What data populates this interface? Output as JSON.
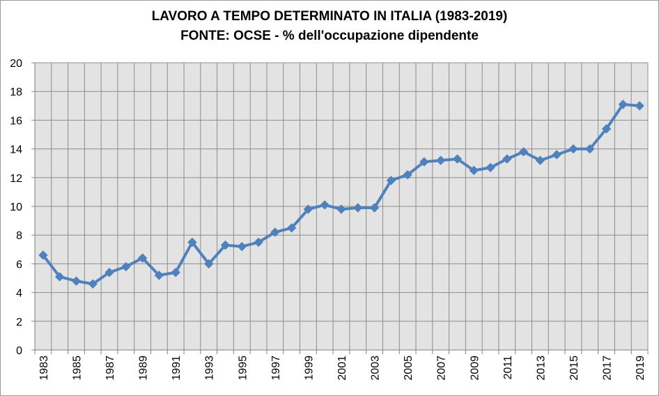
{
  "chart_data": {
    "type": "line",
    "title": "LAVORO A TEMPO DETERMINATO IN ITALIA (1983-2019)",
    "subtitle": "FONTE: OCSE - % dell'occupazione dipendente",
    "xlabel": "",
    "ylabel": "",
    "ylim": [
      0,
      20
    ],
    "y_ticks": [
      "0",
      "2",
      "4",
      "6",
      "8",
      "10",
      "12",
      "14",
      "16",
      "18",
      "20"
    ],
    "grid": true,
    "legend": "none",
    "colors": {
      "line": "#4f81bd",
      "plot_bg": "#e3e3e3",
      "grid": "#8c8c8c"
    },
    "x": [
      1983,
      1984,
      1985,
      1986,
      1987,
      1988,
      1989,
      1990,
      1991,
      1992,
      1993,
      1994,
      1995,
      1996,
      1997,
      1998,
      1999,
      2000,
      2001,
      2002,
      2003,
      2004,
      2005,
      2006,
      2007,
      2008,
      2009,
      2010,
      2011,
      2012,
      2013,
      2014,
      2015,
      2016,
      2017,
      2018,
      2019
    ],
    "x_tick_labels": [
      "1983",
      "1985",
      "1987",
      "1989",
      "1991",
      "1993",
      "1995",
      "1997",
      "1999",
      "2001",
      "2003",
      "2005",
      "2007",
      "2009",
      "2011",
      "2013",
      "2015",
      "2017",
      "2019"
    ],
    "series": [
      {
        "values": [
          6.6,
          5.1,
          4.8,
          4.6,
          5.4,
          5.8,
          6.4,
          5.2,
          5.4,
          7.5,
          6.0,
          7.3,
          7.2,
          7.5,
          8.2,
          8.5,
          9.8,
          10.1,
          9.8,
          9.9,
          9.9,
          11.8,
          12.2,
          13.1,
          13.2,
          13.3,
          12.5,
          12.7,
          13.3,
          13.8,
          13.2,
          13.6,
          14.0,
          14.0,
          15.4,
          17.1,
          17.0
        ]
      }
    ]
  }
}
